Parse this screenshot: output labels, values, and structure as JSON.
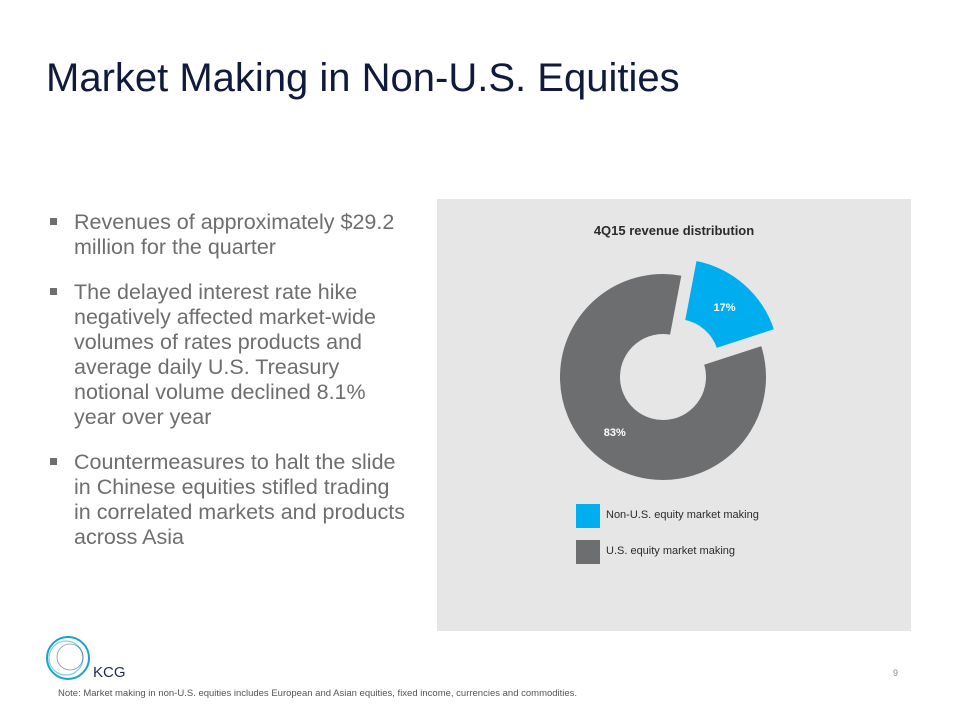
{
  "slide": {
    "title": "Market Making in Non-U.S. Equities",
    "bullets": [
      "Revenues of approximately $29.2 million for the quarter",
      "The delayed interest rate hike negatively affected market-wide volumes of rates products and average daily U.S. Treasury notional volume declined 8.1% year over year",
      "Countermeasures to halt the slide in Chinese equities stifled trading in correlated markets and products across Asia"
    ],
    "logo_text": "KCG",
    "page_number": "9",
    "footnote": "Note: Market making in non-U.S. equities includes European and Asian equities, fixed income, currencies and commodities."
  },
  "chart_data": {
    "type": "pie",
    "variant": "donut",
    "title": "4Q15 revenue distribution",
    "categories": [
      "Non-U.S. equity market making",
      "U.S. equity market making"
    ],
    "values": [
      17,
      83
    ],
    "data_labels": [
      "17%",
      "83%"
    ],
    "colors": [
      "#00adef",
      "#6d6e70"
    ],
    "exploded": [
      "Non-U.S. equity market making"
    ],
    "legend_position": "bottom"
  },
  "colors": {
    "title": "#0f1a3c",
    "body_text": "#6e6e6e",
    "panel_background": "#e6e6e6",
    "logo_ring": "#1aa3c9"
  }
}
